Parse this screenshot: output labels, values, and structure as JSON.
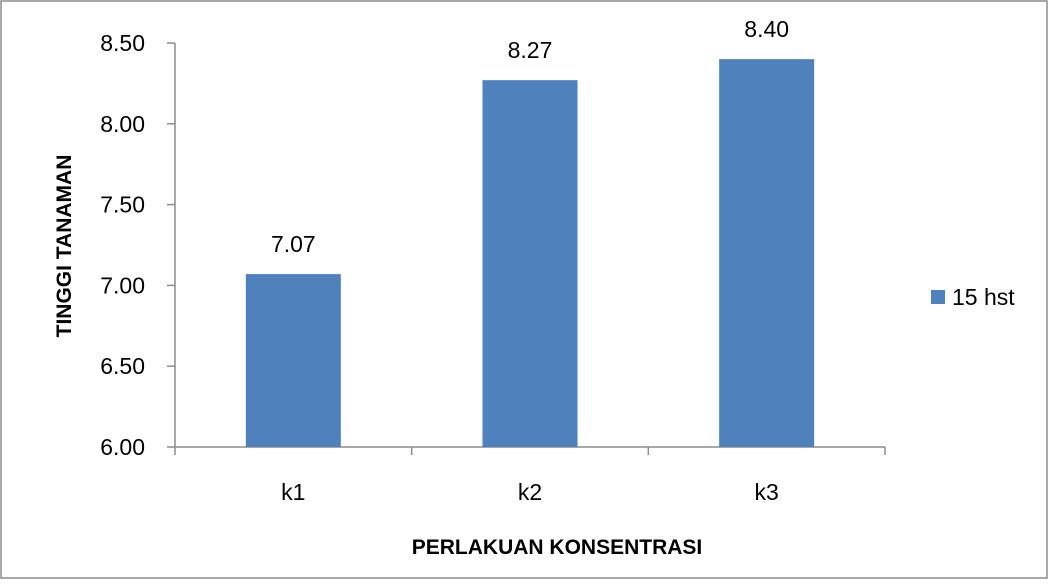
{
  "chart_data": {
    "type": "bar",
    "categories": [
      "k1",
      "k2",
      "k3"
    ],
    "series": [
      {
        "name": "15 hst",
        "values": [
          7.07,
          8.27,
          8.4
        ],
        "color": "#4f81bd"
      }
    ],
    "data_labels": [
      "7.07",
      "8.27",
      "8.40"
    ],
    "title": "",
    "xlabel": "PERLAKUAN KONSENTRASI",
    "ylabel": "TINGGI TANAMAN",
    "ylim": [
      6.0,
      8.5
    ],
    "yticks": [
      6.0,
      6.5,
      7.0,
      7.5,
      8.0,
      8.5
    ],
    "ytick_labels": [
      "6.00",
      "6.50",
      "7.00",
      "7.50",
      "8.00",
      "8.50"
    ],
    "grid": false,
    "legend_position": "right"
  }
}
